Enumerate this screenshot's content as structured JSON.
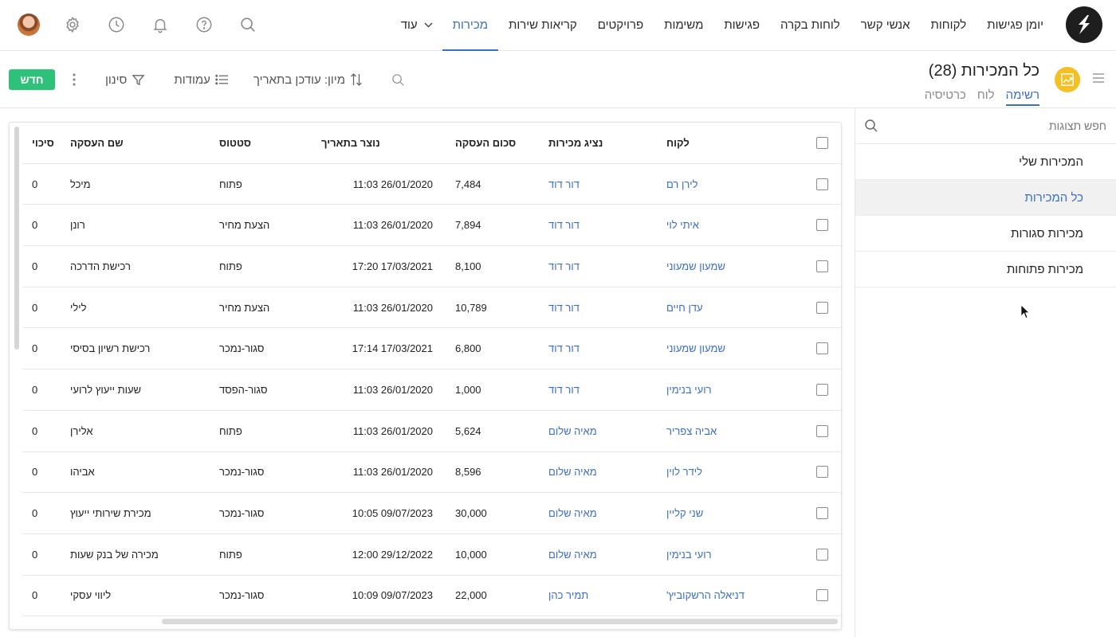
{
  "nav": {
    "items": [
      "יומן פגישות",
      "לקוחות",
      "אנשי קשר",
      "לוחות בקרה",
      "פגישות",
      "משימות",
      "פרויקטים",
      "קריאות שירות",
      "מכירות"
    ],
    "active_index": 8,
    "more_label": "עוד"
  },
  "top_icons": [
    "search-icon",
    "help-icon",
    "bell-icon",
    "clock-icon",
    "gear-icon",
    "avatar"
  ],
  "header": {
    "title": "כל המכירות (28)",
    "view_tabs": [
      "רשימה",
      "לוח",
      "כרטיסיה"
    ],
    "active_view_index": 0
  },
  "toolbar": {
    "new_label": "חדש",
    "filter_label": "סינון",
    "columns_label": "עמודות",
    "sort_label": "מיון: עודכן בתאריך"
  },
  "sidebar": {
    "search_placeholder": "חפש תצוגות",
    "items": [
      "המכירות שלי",
      "כל המכירות",
      "מכירות סגורות",
      "מכירות פתוחות"
    ],
    "active_index": 1
  },
  "table": {
    "columns": [
      "לקוח",
      "נציג מכירות",
      "סכום העסקה",
      "נוצר בתאריך",
      "סטטוס",
      "שם העסקה",
      "סיכוי"
    ],
    "rows": [
      {
        "customer": "לירן רם",
        "rep": "דור דוד",
        "amount": "7,484",
        "created": "11:03 26/01/2020",
        "status": "פתוח",
        "deal": "מיכל",
        "probability": "0"
      },
      {
        "customer": "איתי לוי",
        "rep": "דור דוד",
        "amount": "7,894",
        "created": "11:03 26/01/2020",
        "status": "הצעת מחיר",
        "deal": "רונן",
        "probability": "0"
      },
      {
        "customer": "שמעון שמעוני",
        "rep": "דור דוד",
        "amount": "8,100",
        "created": "17:20 17/03/2021",
        "status": "פתוח",
        "deal": "רכישת הדרכה",
        "probability": "0"
      },
      {
        "customer": "עדן חיים",
        "rep": "דור דוד",
        "amount": "10,789",
        "created": "11:03 26/01/2020",
        "status": "הצעת מחיר",
        "deal": "לילי",
        "probability": "0"
      },
      {
        "customer": "שמעון שמעוני",
        "rep": "דור דוד",
        "amount": "6,800",
        "created": "17:14 17/03/2021",
        "status": "סגור-נמכר",
        "deal": "רכישת רשיון בסיסי",
        "probability": "0"
      },
      {
        "customer": "רועי בנימין",
        "rep": "דור דוד",
        "amount": "1,000",
        "created": "11:03 26/01/2020",
        "status": "סגור-הפסד",
        "deal": "שעות ייעוץ לרועי",
        "probability": "0"
      },
      {
        "customer": "אביה צפריר",
        "rep": "מאיה שלום",
        "amount": "5,624",
        "created": "11:03 26/01/2020",
        "status": "פתוח",
        "deal": "אלירן",
        "probability": "0"
      },
      {
        "customer": "לידר לוין",
        "rep": "מאיה שלום",
        "amount": "8,596",
        "created": "11:03 26/01/2020",
        "status": "סגור-נמכר",
        "deal": "אביהו",
        "probability": "0"
      },
      {
        "customer": "שני קליין",
        "rep": "מאיה שלום",
        "amount": "30,000",
        "created": "10:05 09/07/2023",
        "status": "סגור-נמכר",
        "deal": "מכירת שירותי ייעוץ",
        "probability": "0"
      },
      {
        "customer": "רועי בנימין",
        "rep": "מאיה שלום",
        "amount": "10,000",
        "created": "12:00 29/12/2022",
        "status": "פתוח",
        "deal": "מכירה של בנק שעות",
        "probability": "0"
      },
      {
        "customer": "דניאלה הרשקוביץ'",
        "rep": "תמיר כהן",
        "amount": "22,000",
        "created": "10:09 09/07/2023",
        "status": "סגור-נמכר",
        "deal": "ליווי עסקי",
        "probability": "0"
      }
    ]
  },
  "colors": {
    "accent": "#3b6fc4",
    "new_button": "#2ec17a",
    "view_icon": "#f5c024",
    "logo_bg": "#1e1e1e"
  }
}
